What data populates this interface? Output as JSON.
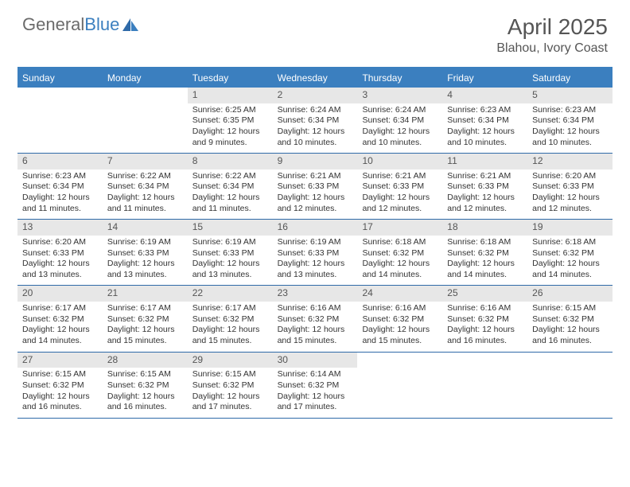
{
  "brand": {
    "part1": "General",
    "part2": "Blue"
  },
  "title": "April 2025",
  "location": "Blahou, Ivory Coast",
  "colors": {
    "header_bg": "#3b7fbf",
    "header_text": "#ffffff",
    "daynum_bg": "#e7e7e7",
    "border": "#2f6aa8",
    "text": "#333333"
  },
  "day_names": [
    "Sunday",
    "Monday",
    "Tuesday",
    "Wednesday",
    "Thursday",
    "Friday",
    "Saturday"
  ],
  "weeks": [
    [
      {
        "n": "",
        "sr": "",
        "ss": "",
        "dl": "",
        "empty": true
      },
      {
        "n": "",
        "sr": "",
        "ss": "",
        "dl": "",
        "empty": true
      },
      {
        "n": "1",
        "sr": "Sunrise: 6:25 AM",
        "ss": "Sunset: 6:35 PM",
        "dl": "Daylight: 12 hours and 9 minutes."
      },
      {
        "n": "2",
        "sr": "Sunrise: 6:24 AM",
        "ss": "Sunset: 6:34 PM",
        "dl": "Daylight: 12 hours and 10 minutes."
      },
      {
        "n": "3",
        "sr": "Sunrise: 6:24 AM",
        "ss": "Sunset: 6:34 PM",
        "dl": "Daylight: 12 hours and 10 minutes."
      },
      {
        "n": "4",
        "sr": "Sunrise: 6:23 AM",
        "ss": "Sunset: 6:34 PM",
        "dl": "Daylight: 12 hours and 10 minutes."
      },
      {
        "n": "5",
        "sr": "Sunrise: 6:23 AM",
        "ss": "Sunset: 6:34 PM",
        "dl": "Daylight: 12 hours and 10 minutes."
      }
    ],
    [
      {
        "n": "6",
        "sr": "Sunrise: 6:23 AM",
        "ss": "Sunset: 6:34 PM",
        "dl": "Daylight: 12 hours and 11 minutes."
      },
      {
        "n": "7",
        "sr": "Sunrise: 6:22 AM",
        "ss": "Sunset: 6:34 PM",
        "dl": "Daylight: 12 hours and 11 minutes."
      },
      {
        "n": "8",
        "sr": "Sunrise: 6:22 AM",
        "ss": "Sunset: 6:34 PM",
        "dl": "Daylight: 12 hours and 11 minutes."
      },
      {
        "n": "9",
        "sr": "Sunrise: 6:21 AM",
        "ss": "Sunset: 6:33 PM",
        "dl": "Daylight: 12 hours and 12 minutes."
      },
      {
        "n": "10",
        "sr": "Sunrise: 6:21 AM",
        "ss": "Sunset: 6:33 PM",
        "dl": "Daylight: 12 hours and 12 minutes."
      },
      {
        "n": "11",
        "sr": "Sunrise: 6:21 AM",
        "ss": "Sunset: 6:33 PM",
        "dl": "Daylight: 12 hours and 12 minutes."
      },
      {
        "n": "12",
        "sr": "Sunrise: 6:20 AM",
        "ss": "Sunset: 6:33 PM",
        "dl": "Daylight: 12 hours and 12 minutes."
      }
    ],
    [
      {
        "n": "13",
        "sr": "Sunrise: 6:20 AM",
        "ss": "Sunset: 6:33 PM",
        "dl": "Daylight: 12 hours and 13 minutes."
      },
      {
        "n": "14",
        "sr": "Sunrise: 6:19 AM",
        "ss": "Sunset: 6:33 PM",
        "dl": "Daylight: 12 hours and 13 minutes."
      },
      {
        "n": "15",
        "sr": "Sunrise: 6:19 AM",
        "ss": "Sunset: 6:33 PM",
        "dl": "Daylight: 12 hours and 13 minutes."
      },
      {
        "n": "16",
        "sr": "Sunrise: 6:19 AM",
        "ss": "Sunset: 6:33 PM",
        "dl": "Daylight: 12 hours and 13 minutes."
      },
      {
        "n": "17",
        "sr": "Sunrise: 6:18 AM",
        "ss": "Sunset: 6:32 PM",
        "dl": "Daylight: 12 hours and 14 minutes."
      },
      {
        "n": "18",
        "sr": "Sunrise: 6:18 AM",
        "ss": "Sunset: 6:32 PM",
        "dl": "Daylight: 12 hours and 14 minutes."
      },
      {
        "n": "19",
        "sr": "Sunrise: 6:18 AM",
        "ss": "Sunset: 6:32 PM",
        "dl": "Daylight: 12 hours and 14 minutes."
      }
    ],
    [
      {
        "n": "20",
        "sr": "Sunrise: 6:17 AM",
        "ss": "Sunset: 6:32 PM",
        "dl": "Daylight: 12 hours and 14 minutes."
      },
      {
        "n": "21",
        "sr": "Sunrise: 6:17 AM",
        "ss": "Sunset: 6:32 PM",
        "dl": "Daylight: 12 hours and 15 minutes."
      },
      {
        "n": "22",
        "sr": "Sunrise: 6:17 AM",
        "ss": "Sunset: 6:32 PM",
        "dl": "Daylight: 12 hours and 15 minutes."
      },
      {
        "n": "23",
        "sr": "Sunrise: 6:16 AM",
        "ss": "Sunset: 6:32 PM",
        "dl": "Daylight: 12 hours and 15 minutes."
      },
      {
        "n": "24",
        "sr": "Sunrise: 6:16 AM",
        "ss": "Sunset: 6:32 PM",
        "dl": "Daylight: 12 hours and 15 minutes."
      },
      {
        "n": "25",
        "sr": "Sunrise: 6:16 AM",
        "ss": "Sunset: 6:32 PM",
        "dl": "Daylight: 12 hours and 16 minutes."
      },
      {
        "n": "26",
        "sr": "Sunrise: 6:15 AM",
        "ss": "Sunset: 6:32 PM",
        "dl": "Daylight: 12 hours and 16 minutes."
      }
    ],
    [
      {
        "n": "27",
        "sr": "Sunrise: 6:15 AM",
        "ss": "Sunset: 6:32 PM",
        "dl": "Daylight: 12 hours and 16 minutes."
      },
      {
        "n": "28",
        "sr": "Sunrise: 6:15 AM",
        "ss": "Sunset: 6:32 PM",
        "dl": "Daylight: 12 hours and 16 minutes."
      },
      {
        "n": "29",
        "sr": "Sunrise: 6:15 AM",
        "ss": "Sunset: 6:32 PM",
        "dl": "Daylight: 12 hours and 17 minutes."
      },
      {
        "n": "30",
        "sr": "Sunrise: 6:14 AM",
        "ss": "Sunset: 6:32 PM",
        "dl": "Daylight: 12 hours and 17 minutes."
      },
      {
        "n": "",
        "sr": "",
        "ss": "",
        "dl": "",
        "empty": true
      },
      {
        "n": "",
        "sr": "",
        "ss": "",
        "dl": "",
        "empty": true
      },
      {
        "n": "",
        "sr": "",
        "ss": "",
        "dl": "",
        "empty": true
      }
    ]
  ]
}
